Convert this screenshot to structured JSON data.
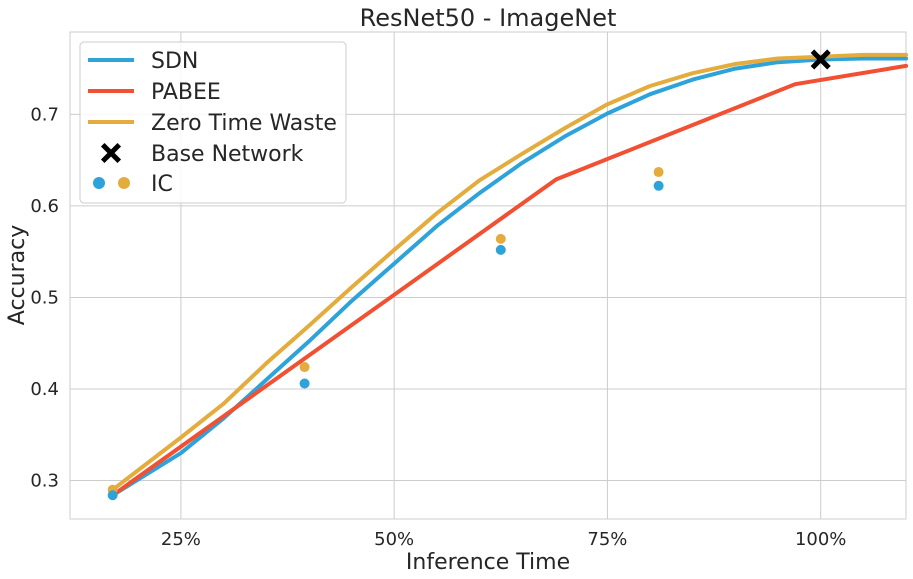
{
  "chart_data": {
    "type": "line",
    "title": "ResNet50 - ImageNet",
    "xlabel": "Inference Time",
    "ylabel": "Accuracy",
    "xlim": [
      0.12,
      1.1
    ],
    "ylim": [
      0.258,
      0.79
    ],
    "x_ticks": [
      {
        "value": 0.25,
        "label": "25%"
      },
      {
        "value": 0.5,
        "label": "50%"
      },
      {
        "value": 0.75,
        "label": "75%"
      },
      {
        "value": 1.0,
        "label": "100%"
      }
    ],
    "y_ticks": [
      {
        "value": 0.3,
        "label": "0.3"
      },
      {
        "value": 0.4,
        "label": "0.4"
      },
      {
        "value": 0.5,
        "label": "0.5"
      },
      {
        "value": 0.6,
        "label": "0.6"
      },
      {
        "value": 0.7,
        "label": "0.7"
      }
    ],
    "grid": true,
    "legend_position": "top-left",
    "series": [
      {
        "name": "SDN",
        "color": "#2ea3d9",
        "kind": "line",
        "x": [
          0.17,
          0.25,
          0.3,
          0.35,
          0.4,
          0.45,
          0.5,
          0.55,
          0.6,
          0.65,
          0.7,
          0.75,
          0.8,
          0.85,
          0.9,
          0.95,
          1.0,
          1.05,
          1.1
        ],
        "y": [
          0.284,
          0.33,
          0.368,
          0.41,
          0.452,
          0.496,
          0.537,
          0.578,
          0.614,
          0.647,
          0.676,
          0.701,
          0.722,
          0.738,
          0.75,
          0.757,
          0.76,
          0.761,
          0.761
        ]
      },
      {
        "name": "PABEE",
        "color": "#f25033",
        "kind": "line",
        "x": [
          0.17,
          0.69,
          0.97,
          1.1
        ],
        "y": [
          0.284,
          0.629,
          0.733,
          0.753
        ]
      },
      {
        "name": "Zero Time Waste",
        "color": "#e3ac3d",
        "kind": "line",
        "x": [
          0.17,
          0.25,
          0.3,
          0.35,
          0.4,
          0.45,
          0.5,
          0.55,
          0.6,
          0.65,
          0.7,
          0.75,
          0.8,
          0.85,
          0.9,
          0.95,
          1.0,
          1.05,
          1.1
        ],
        "y": [
          0.29,
          0.347,
          0.384,
          0.428,
          0.469,
          0.511,
          0.552,
          0.592,
          0.628,
          0.657,
          0.685,
          0.711,
          0.731,
          0.745,
          0.755,
          0.761,
          0.763,
          0.765,
          0.765
        ]
      },
      {
        "name": "Base Network",
        "color": "#000000",
        "kind": "marker-x",
        "x": [
          1.0
        ],
        "y": [
          0.76
        ]
      },
      {
        "name": "IC",
        "kind": "points",
        "colors": [
          "#2ea3d9",
          "#e3ac3d"
        ],
        "points_blue": {
          "x": [
            0.17,
            0.395,
            0.625,
            0.81
          ],
          "y": [
            0.284,
            0.406,
            0.552,
            0.622
          ]
        },
        "points_orange": {
          "x": [
            0.17,
            0.395,
            0.625,
            0.81
          ],
          "y": [
            0.29,
            0.424,
            0.564,
            0.637
          ]
        }
      }
    ]
  }
}
